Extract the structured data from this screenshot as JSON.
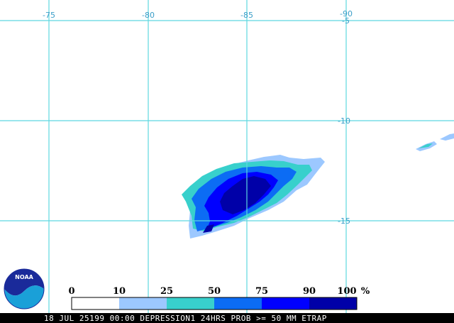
{
  "map": {
    "longitude_labels": [
      "-75",
      "-80",
      "-85",
      "-90"
    ],
    "latitude_labels": [
      "-5",
      "-10",
      "-15"
    ],
    "gridline_color": "#5ed8e0",
    "label_color": "#3a9ec8"
  },
  "probability_areas": [
    {
      "min_percent": 10,
      "max_percent": 25,
      "color": "#9cc8ff"
    },
    {
      "min_percent": 25,
      "max_percent": 50,
      "color": "#38d0cc"
    },
    {
      "min_percent": 50,
      "max_percent": 75,
      "color": "#0c6cf4"
    },
    {
      "min_percent": 75,
      "max_percent": 90,
      "color": "#0000ff"
    },
    {
      "min_percent": 90,
      "max_percent": 100,
      "color": "#0000a8"
    }
  ],
  "legend": {
    "labels": [
      "0",
      "10",
      "25",
      "50",
      "75",
      "90",
      "100"
    ],
    "unit": "%",
    "colors": [
      "#ffffff",
      "#9cc8ff",
      "#38d0cc",
      "#0c6cf4",
      "#0000ff",
      "#0000a8"
    ]
  },
  "logo": {
    "text": "NOAA",
    "icon": "noaa-logo-icon"
  },
  "caption": "18 JUL 25199 00:00 DEPRESSION1 24HRS PROB >= 50 MM ETRAP"
}
